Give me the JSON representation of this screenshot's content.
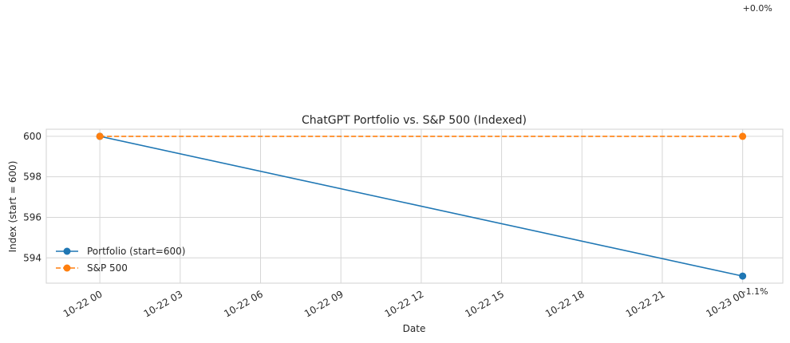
{
  "chart_data": {
    "type": "line",
    "title": "ChatGPT Portfolio vs. S&P 500 (Indexed)",
    "xlabel": "Date",
    "ylabel": "Index (start = 600)",
    "x": [
      "2024-10-22 00:00",
      "2024-10-23 00:00"
    ],
    "xlim": [
      "2024-10-21 22:00",
      "2024-10-23 01:30"
    ],
    "ylim": [
      592.75,
      600.35
    ],
    "x_ticks": [
      "10-22 00",
      "10-22 03",
      "10-22 06",
      "10-22 09",
      "10-22 12",
      "10-22 15",
      "10-22 18",
      "10-22 21",
      "10-23 00"
    ],
    "y_ticks": [
      594,
      596,
      598,
      600
    ],
    "grid": true,
    "legend_position": "lower-left",
    "series": [
      {
        "name": "Portfolio (start=600)",
        "values": [
          600,
          593.1
        ],
        "color": "#1f77b4",
        "linestyle": "solid",
        "marker": "circle"
      },
      {
        "name": "S&P 500",
        "values": [
          600,
          600
        ],
        "color": "#ff7f0e",
        "linestyle": "dashed",
        "marker": "circle"
      }
    ],
    "annotations": [
      {
        "text": "+0.0%",
        "x": "2024-10-23 00:00",
        "series": "S&P 500"
      },
      {
        "text": "-1.1%",
        "x": "2024-10-23 00:00",
        "series": "Portfolio (start=600)"
      }
    ]
  }
}
